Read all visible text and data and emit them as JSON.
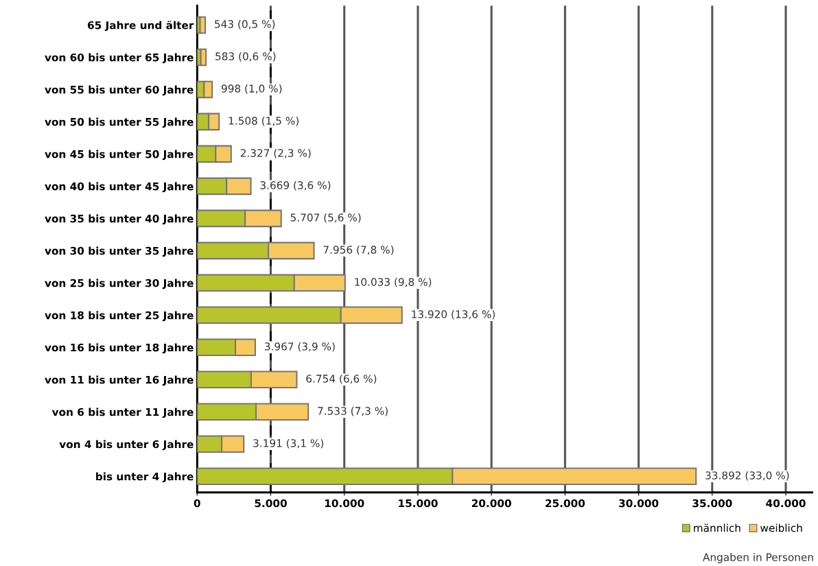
{
  "chart_data": {
    "type": "bar",
    "orientation": "horizontal",
    "stacked": true,
    "categories": [
      "65 Jahre und älter",
      "von 60 bis unter 65 Jahre",
      "von 55 bis unter 60 Jahre",
      "von 50 bis unter 55 Jahre",
      "von 45 bis unter 50 Jahre",
      "von 40 bis unter 45 Jahre",
      "von 35 bis unter 40 Jahre",
      "von 30 bis unter 35 Jahre",
      "von 25 bis unter 30 Jahre",
      "von 18 bis unter 25 Jahre",
      "von 16 bis unter 18 Jahre",
      "von 11 bis unter 16 Jahre",
      "von 6 bis unter 11 Jahre",
      "von 4 bis unter 6 Jahre",
      "bis unter 4 Jahre"
    ],
    "series": [
      {
        "name": "männlich",
        "color": "#b8c42c",
        "values": [
          200,
          250,
          470,
          790,
          1260,
          2000,
          3260,
          4840,
          6600,
          9770,
          2600,
          3670,
          4000,
          1670,
          17350
        ]
      },
      {
        "name": "weiblich",
        "color": "#f8c860",
        "values": [
          350,
          350,
          550,
          700,
          1050,
          1650,
          2450,
          3100,
          3450,
          4150,
          1350,
          3100,
          3550,
          1500,
          16550
        ]
      }
    ],
    "totals": [
      "543 (0,5 %)",
      "583 (0,6 %)",
      "998 (1,0 %)",
      "1.508 (1,5 %)",
      "2.327 (2,3 %)",
      "3.669 (3,6 %)",
      "5.707 (5,6 %)",
      "7.956 (7,8 %)",
      "10.033 (9,8 %)",
      "13.920 (13,6 %)",
      "3.967 (3,9 %)",
      "6.754 (6,6 %)",
      "7.533 (7,3 %)",
      "3.191 (3,1 %)",
      "33.892 (33,0 %)"
    ],
    "xlim": [
      0,
      41800
    ],
    "xticks": [
      {
        "value": 0,
        "label": "0"
      },
      {
        "value": 5000,
        "label": "5.000"
      },
      {
        "value": 10000,
        "label": "10.000"
      },
      {
        "value": 15000,
        "label": "15.000"
      },
      {
        "value": 20000,
        "label": "20.000"
      },
      {
        "value": 25000,
        "label": "25.000"
      },
      {
        "value": 30000,
        "label": "30.000"
      },
      {
        "value": 35000,
        "label": "35.000"
      },
      {
        "value": 40000,
        "label": "40.000"
      }
    ],
    "grid": "x",
    "ref_lines": [
      {
        "axis": "x",
        "value": 5000,
        "color": "#111111",
        "line_style": "dashed"
      }
    ],
    "legend": "bottom right",
    "annotations": [
      "Angaben in Personen"
    ]
  }
}
